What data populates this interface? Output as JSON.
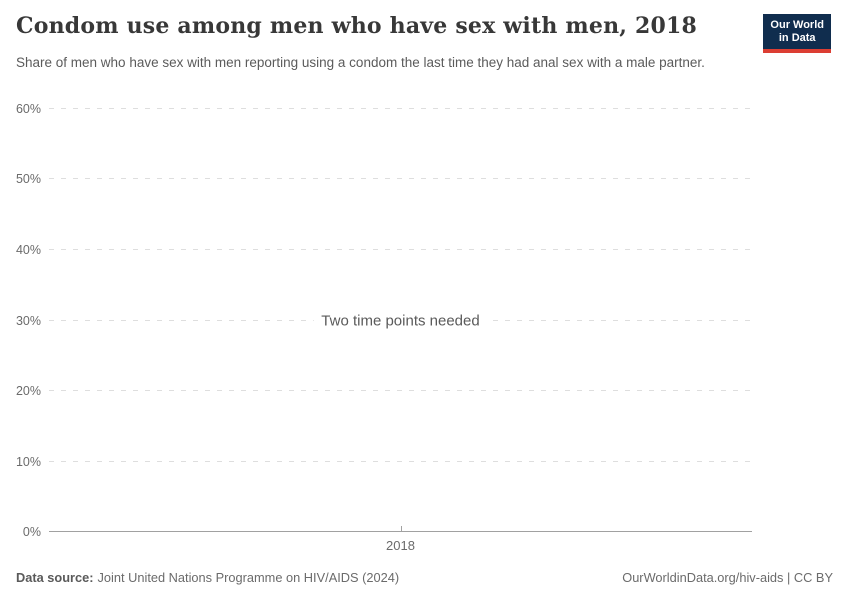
{
  "header": {
    "title": "Condom use among men who have sex with men, 2018",
    "subtitle": "Share of men who have sex with men reporting using a condom the last time they had anal sex with a male partner.",
    "logo": {
      "line1": "Our World",
      "line2": "in Data",
      "bg_color": "#102d4e",
      "stripe_color": "#dc3e33"
    }
  },
  "chart_data": {
    "type": "line",
    "title": "Condom use among men who have sex with men, 2018",
    "note": "Two time points needed",
    "series": [],
    "x": [
      2018
    ],
    "x_ticks": [
      "2018"
    ],
    "y_ticks": [
      "0%",
      "10%",
      "20%",
      "30%",
      "40%",
      "50%",
      "60%"
    ],
    "ylim": [
      0,
      60
    ],
    "xlabel": "",
    "ylabel": "",
    "grid": true,
    "gridline_color": "#dedede",
    "axis_color": "#a1a1a1",
    "note_color": "#5a5a5a"
  },
  "footer": {
    "source_label": "Data source:",
    "source_text": "Joint United Nations Programme on HIV/AIDS (2024)",
    "attribution": "OurWorldinData.org/hiv-aids | CC BY"
  }
}
